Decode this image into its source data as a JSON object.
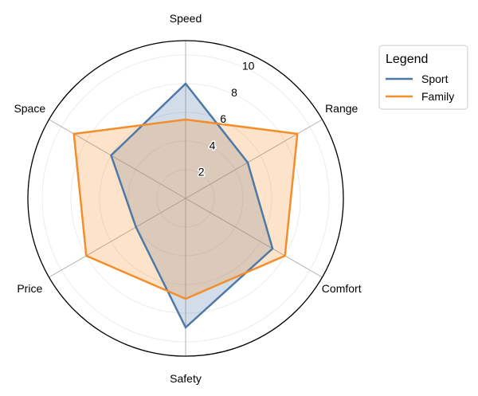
{
  "chart_data": {
    "type": "radar",
    "axes": [
      "Speed",
      "Range",
      "Comfort",
      "Safety",
      "Price",
      "Space"
    ],
    "rlim": [
      0,
      11
    ],
    "rticks": [
      2,
      4,
      6,
      8,
      10
    ],
    "grid": true,
    "legend": {
      "title": "Legend",
      "placement": "top-right"
    },
    "series": [
      {
        "name": "Sport",
        "values": [
          8,
          5,
          7,
          9,
          4,
          6
        ],
        "color": "#4e79a7"
      },
      {
        "name": "Family",
        "values": [
          5.5,
          9,
          8,
          7,
          8,
          9
        ],
        "color": "#f28e2b"
      }
    ]
  }
}
